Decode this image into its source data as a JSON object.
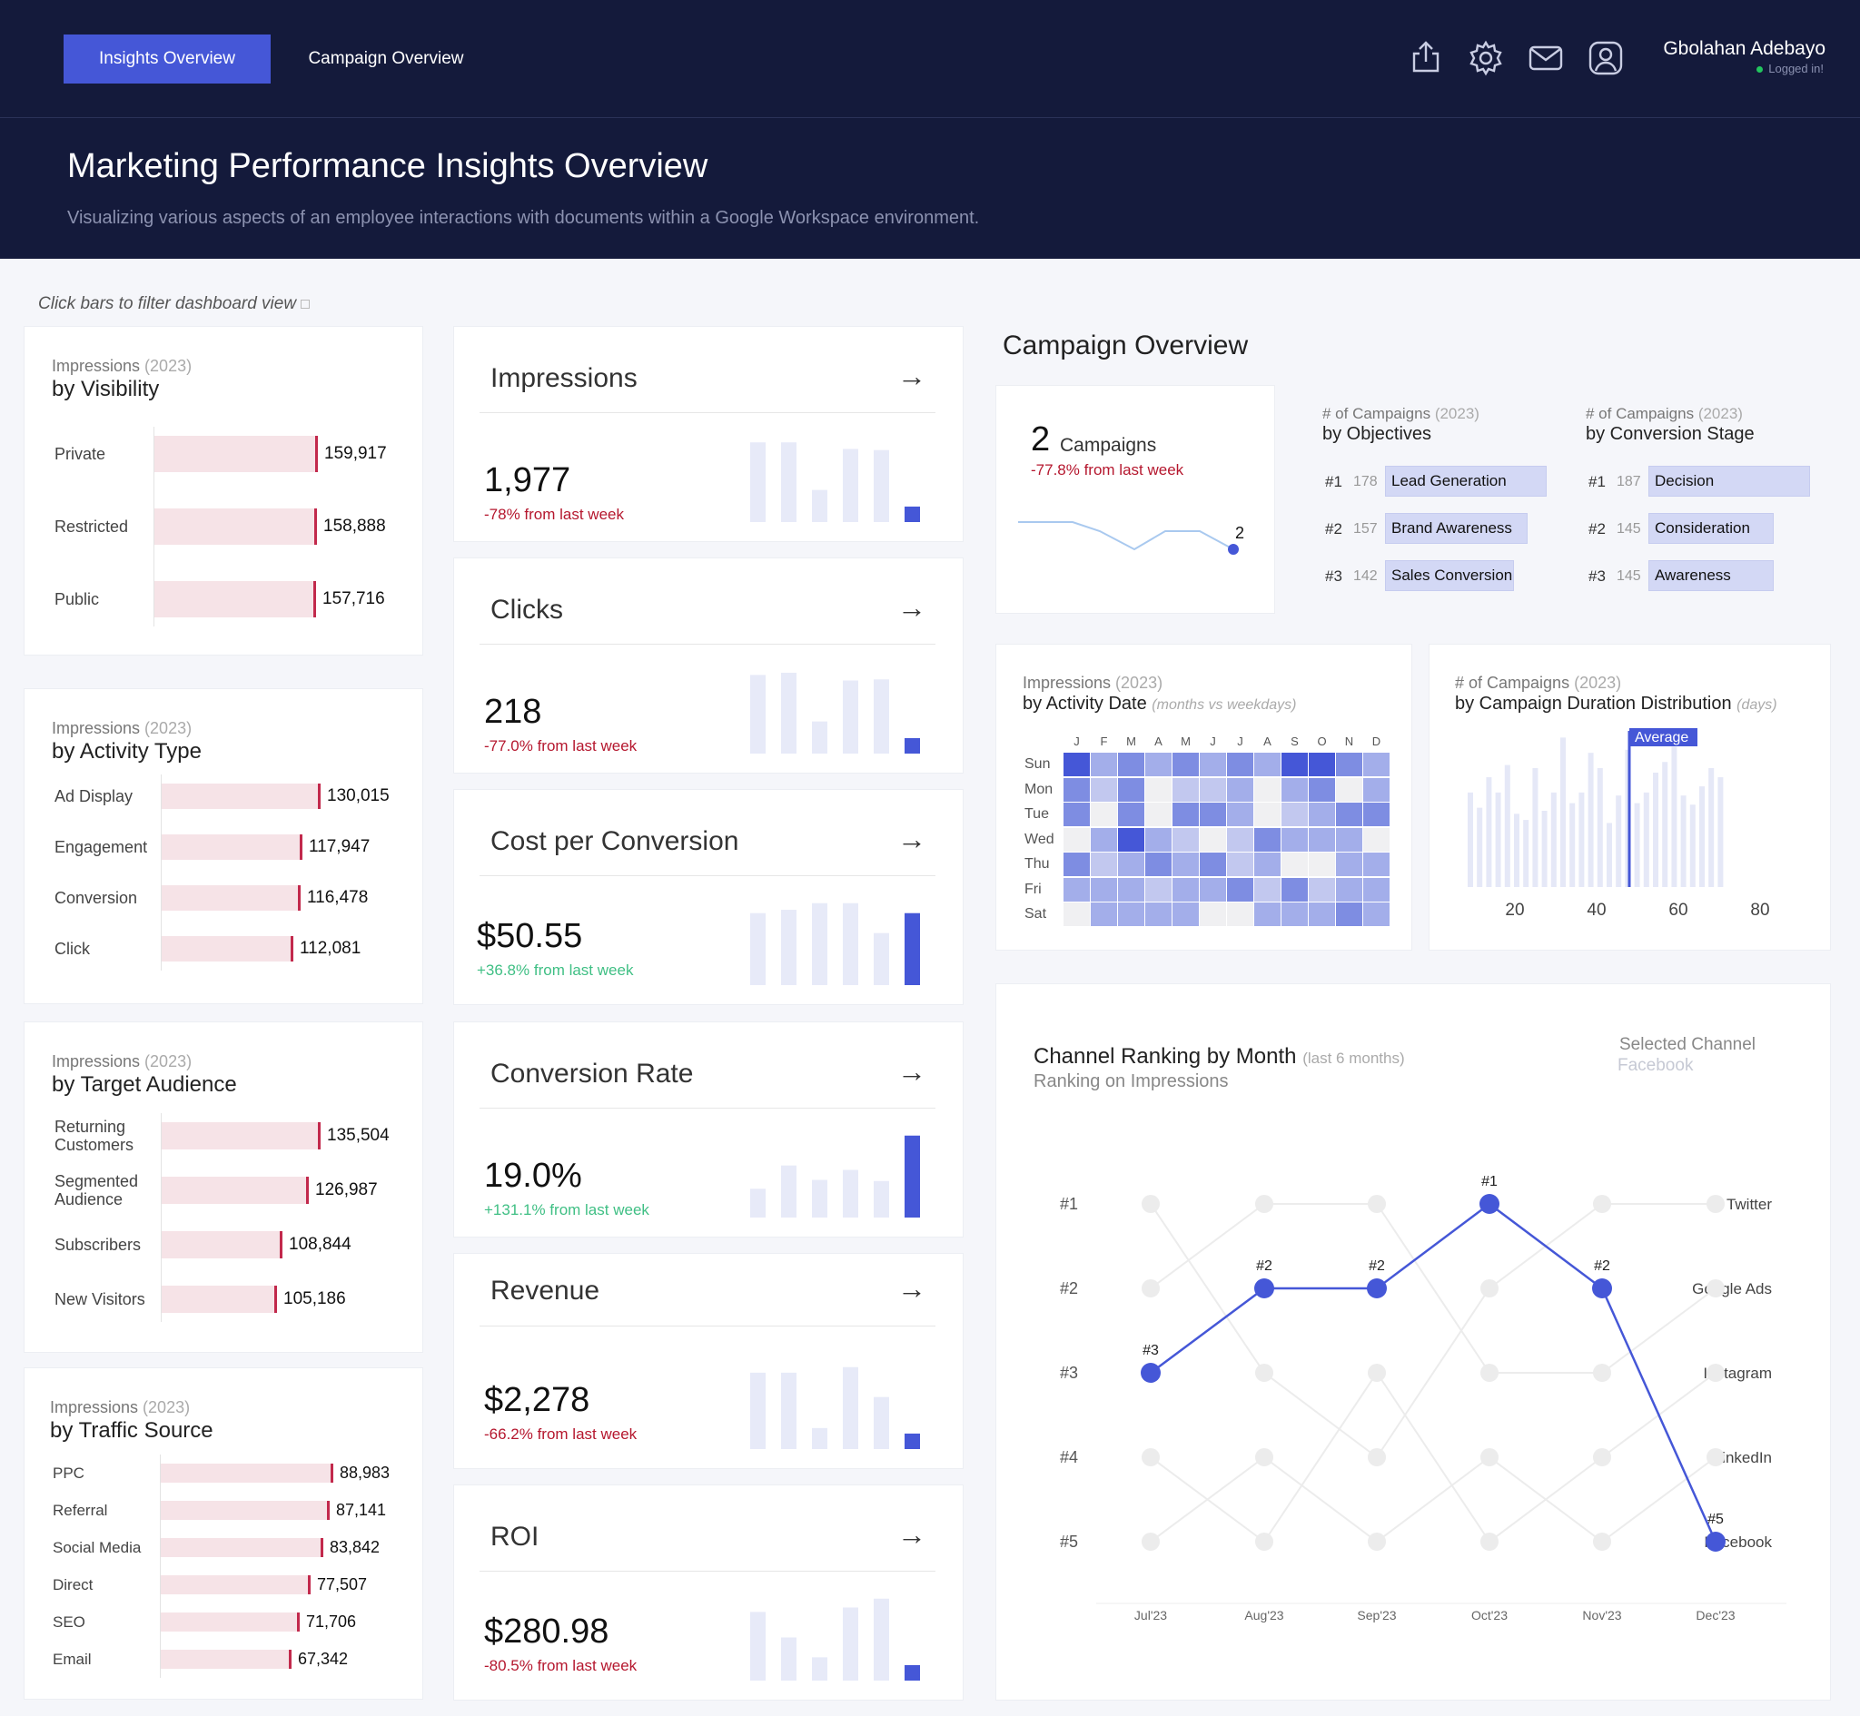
{
  "nav": {
    "tabs": [
      {
        "label": "Insights Overview",
        "active": true
      },
      {
        "label": "Campaign Overview",
        "active": false
      }
    ],
    "icons": [
      "share-icon",
      "gear-icon",
      "mail-icon",
      "user-icon"
    ],
    "user": {
      "name": "Gbolahan Adebayo",
      "status": "Logged in!"
    }
  },
  "header": {
    "title": "Marketing Performance Insights Overview",
    "subtitle": "Visualizing various aspects of an employee interactions with documents within a Google Workspace environment."
  },
  "hint": "Click bars to filter dashboard view",
  "impression_cards": [
    {
      "small": "Impressions",
      "year": "(2023)",
      "title": "by Visibility",
      "items": [
        {
          "label": "Private",
          "value": 159917,
          "text": "159,917"
        },
        {
          "label": "Restricted",
          "value": 158888,
          "text": "158,888"
        },
        {
          "label": "Public",
          "value": 157716,
          "text": "157,716"
        }
      ]
    },
    {
      "small": "Impressions",
      "year": "(2023)",
      "title": "by Activity Type",
      "items": [
        {
          "label": "Ad Display",
          "value": 130015,
          "text": "130,015"
        },
        {
          "label": "Engagement",
          "value": 117947,
          "text": "117,947"
        },
        {
          "label": "Conversion",
          "value": 116478,
          "text": "116,478"
        },
        {
          "label": "Click",
          "value": 112081,
          "text": "112,081"
        }
      ]
    },
    {
      "small": "Impressions",
      "year": "(2023)",
      "title": "by Target Audience",
      "items": [
        {
          "label": "Returning Customers",
          "value": 135504,
          "text": "135,504"
        },
        {
          "label": "Segmented Audience",
          "value": 126987,
          "text": "126,987"
        },
        {
          "label": "Subscribers",
          "value": 108844,
          "text": "108,844"
        },
        {
          "label": "New Visitors",
          "value": 105186,
          "text": "105,186"
        }
      ]
    },
    {
      "small": "Impressions",
      "year": "(2023)",
      "title": "by Traffic Source",
      "items": [
        {
          "label": "PPC",
          "value": 88983,
          "text": "88,983"
        },
        {
          "label": "Referral",
          "value": 87141,
          "text": "87,141"
        },
        {
          "label": "Social Media",
          "value": 83842,
          "text": "83,842"
        },
        {
          "label": "Direct",
          "value": 77507,
          "text": "77,507"
        },
        {
          "label": "SEO",
          "value": 71706,
          "text": "71,706"
        },
        {
          "label": "Email",
          "value": 67342,
          "text": "67,342"
        }
      ]
    }
  ],
  "kpis": [
    {
      "title": "Impressions",
      "arrow": "→",
      "value": "1,977",
      "change": "-78% from last week",
      "trend": "neg",
      "bars": [
        0.72,
        0.72,
        0.29,
        0.66,
        0.65,
        0.14
      ]
    },
    {
      "title": "Clicks",
      "arrow": "→",
      "value": "218",
      "change": "-77.0% from last week",
      "trend": "neg",
      "bars": [
        0.71,
        0.73,
        0.29,
        0.66,
        0.67,
        0.14
      ]
    },
    {
      "title": "Cost per Conversion",
      "arrow": "→",
      "value": "$50.55",
      "change": "+36.8% from last week",
      "trend": "pos",
      "bars": [
        0.65,
        0.68,
        0.74,
        0.74,
        0.47,
        0.65
      ]
    },
    {
      "title": "Conversion Rate",
      "arrow": "→",
      "value": "19.0%",
      "change": "+131.1% from last week",
      "trend": "pos",
      "bars": [
        0.26,
        0.47,
        0.34,
        0.43,
        0.33,
        0.74
      ]
    },
    {
      "title": "Revenue",
      "arrow": "→",
      "value": "$2,278",
      "change": "-66.2% from last week",
      "trend": "neg",
      "bars": [
        0.69,
        0.69,
        0.19,
        0.74,
        0.47,
        0.14
      ]
    },
    {
      "title": "ROI",
      "arrow": "→",
      "value": "$280.98",
      "change": "-80.5% from last week",
      "trend": "neg",
      "bars": [
        0.62,
        0.39,
        0.21,
        0.66,
        0.74,
        0.14
      ]
    }
  ],
  "campaign_overview": {
    "title": "Campaign Overview",
    "count": "2",
    "count_label": "Campaigns",
    "change": "-77.8% from last week",
    "spark_values": [
      5,
      5,
      5,
      4,
      2,
      4,
      4,
      2
    ],
    "spark_last_label": "2",
    "objectives": {
      "small": "# of Campaigns",
      "year": "(2023)",
      "title": "by Objectives",
      "items": [
        {
          "rank": "#1",
          "count": "178",
          "label": "Lead Generation",
          "value": 178
        },
        {
          "rank": "#2",
          "count": "157",
          "label": "Brand Awareness",
          "value": 157
        },
        {
          "rank": "#3",
          "count": "142",
          "label": "Sales Conversion",
          "value": 142
        }
      ]
    },
    "stages": {
      "small": "# of Campaigns",
      "year": "(2023)",
      "title": "by Conversion Stage",
      "items": [
        {
          "rank": "#1",
          "count": "187",
          "label": "Decision",
          "value": 187
        },
        {
          "rank": "#2",
          "count": "145",
          "label": "Consideration",
          "value": 145
        },
        {
          "rank": "#3",
          "count": "145",
          "label": "Awareness",
          "value": 145
        }
      ]
    }
  },
  "heatmap": {
    "small": "Impressions",
    "year": "(2023)",
    "title": "by Activity Date",
    "note": "(months vs weekdays)",
    "months": [
      "J",
      "F",
      "M",
      "A",
      "M",
      "J",
      "J",
      "A",
      "S",
      "O",
      "N",
      "D"
    ],
    "days": [
      "Sun",
      "Mon",
      "Tue",
      "Wed",
      "Thu",
      "Fri",
      "Sat"
    ],
    "levels": [
      [
        4,
        2,
        3,
        2,
        3,
        2,
        3,
        2,
        4,
        4,
        3,
        2
      ],
      [
        3,
        1,
        3,
        0,
        1,
        1,
        2,
        0,
        2,
        3,
        0,
        2
      ],
      [
        3,
        0,
        3,
        0,
        3,
        3,
        2,
        0,
        1,
        2,
        3,
        3
      ],
      [
        0,
        2,
        4,
        2,
        1,
        0,
        1,
        3,
        2,
        2,
        2,
        0
      ],
      [
        3,
        1,
        2,
        3,
        2,
        3,
        1,
        2,
        0,
        0,
        2,
        2
      ],
      [
        2,
        2,
        2,
        1,
        2,
        2,
        3,
        1,
        3,
        1,
        2,
        2
      ],
      [
        0,
        2,
        2,
        2,
        2,
        0,
        0,
        2,
        2,
        2,
        3,
        2
      ]
    ]
  },
  "duration": {
    "small": "# of Campaigns",
    "year": "(2023)",
    "title": "by Campaign Duration Distribution",
    "note": "(days)",
    "average_label": "Average",
    "ticks": [
      "20",
      "40",
      "60",
      "80"
    ],
    "bars": [
      0.62,
      0.52,
      0.72,
      0.62,
      0.8,
      0.48,
      0.44,
      0.78,
      0.5,
      0.62,
      0.98,
      0.55,
      0.62,
      0.88,
      0.78,
      0.42,
      0.6,
      0.9,
      0.55,
      0.62,
      0.75,
      0.82,
      0.92,
      0.6,
      0.54,
      0.66,
      0.78,
      0.72
    ]
  },
  "channel_ranking": {
    "title": "Channel Ranking by Month",
    "note": "(last 6 months)",
    "subtitle": "Ranking on Impressions",
    "selected_label": "Selected Channel",
    "selected_value": "Facebook",
    "months": [
      "Jul'23",
      "Aug'23",
      "Sep'23",
      "Oct'23",
      "Nov'23",
      "Dec'23"
    ],
    "ranks": [
      "#1",
      "#2",
      "#3",
      "#4",
      "#5"
    ],
    "channels": [
      "Twitter",
      "Google Ads",
      "Instagram",
      "LinkedIn",
      "Facebook"
    ],
    "selected_ranks": [
      3,
      2,
      2,
      1,
      2,
      5
    ],
    "point_labels": [
      "#3",
      "#2",
      "#2",
      "#1",
      "#2",
      "#5"
    ],
    "other_ranks": [
      [
        1,
        3,
        4,
        2,
        1,
        1
      ],
      [
        2,
        1,
        1,
        3,
        3,
        2
      ],
      [
        4,
        5,
        3,
        5,
        4,
        3
      ],
      [
        5,
        4,
        5,
        4,
        5,
        4
      ]
    ]
  }
}
